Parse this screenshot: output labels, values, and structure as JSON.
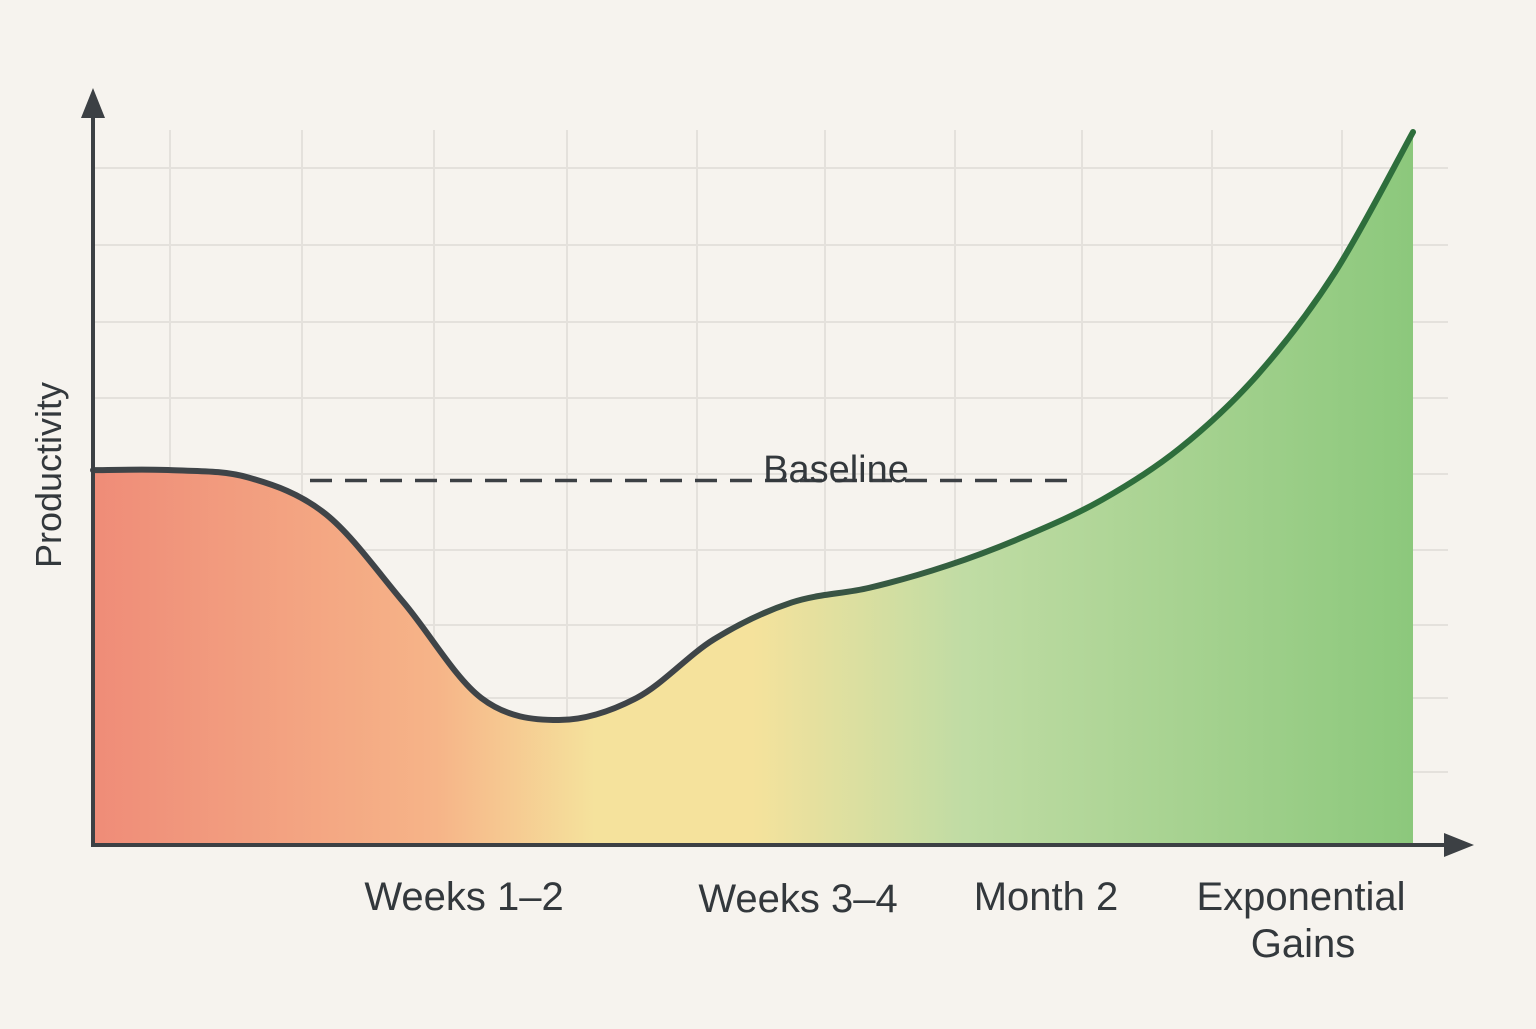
{
  "colors": {
    "background": "#f6f3ee",
    "axis": "#3c4044",
    "grid": "#e4e1dc",
    "baseline": "#3c4044",
    "curve_start": "#3f4448",
    "curve_end": "#2e6e3c",
    "fill_red": "#ef8c78",
    "fill_orange": "#f6b488",
    "fill_yellow": "#f5e29c",
    "fill_lightgreen": "#c0dca4",
    "fill_green": "#8cc87c"
  },
  "chart_data": {
    "type": "area",
    "title": "",
    "xlabel": "",
    "ylabel": "Productivity",
    "grid": true,
    "x_tick_labels": [
      "Weeks 1–2",
      "Weeks 3–4",
      "Month 2",
      "Exponential Gains"
    ],
    "baseline_label": "Baseline",
    "baseline_value": 0.5,
    "ylim": [
      0,
      1
    ],
    "series": [
      {
        "values": [
          0.51,
          0.51,
          0.5,
          0.45,
          0.33,
          0.2,
          0.17,
          0.2,
          0.28,
          0.33,
          0.35,
          0.38,
          0.42,
          0.47,
          0.54,
          0.64,
          0.78,
          0.97
        ]
      }
    ]
  }
}
